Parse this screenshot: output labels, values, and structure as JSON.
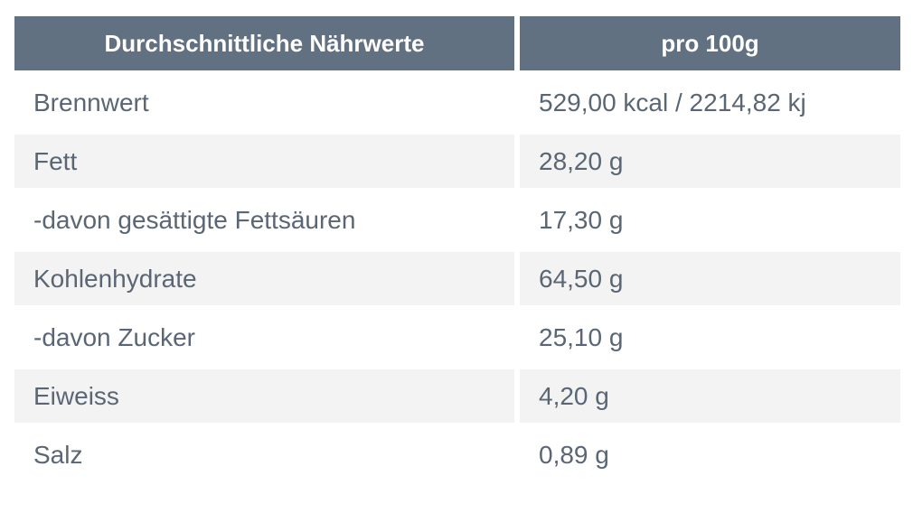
{
  "table": {
    "header": {
      "col1": "Durchschnittliche Nährwerte",
      "col2": "pro 100g"
    },
    "rows": [
      {
        "label": "Brennwert",
        "value": "529,00 kcal / 2214,82 kj"
      },
      {
        "label": "Fett",
        "value": "28,20 g"
      },
      {
        "label": "-davon gesättigte Fettsäuren",
        "value": "17,30 g"
      },
      {
        "label": "Kohlenhydrate",
        "value": "64,50 g"
      },
      {
        "label": "-davon Zucker",
        "value": "25,10 g"
      },
      {
        "label": "Eiweiss",
        "value": "4,20 g"
      },
      {
        "label": "Salz",
        "value": "0,89 g"
      }
    ]
  },
  "colors": {
    "header_background": "#627182",
    "header_text": "#ffffff",
    "row_text": "#5b6675",
    "shaded_row": "#f3f3f3"
  }
}
